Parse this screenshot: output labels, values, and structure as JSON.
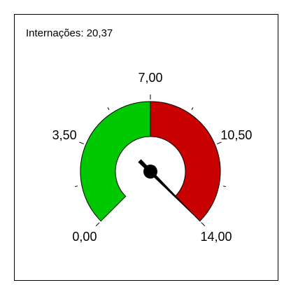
{
  "chart_data": {
    "type": "gauge",
    "title": "Internações: 20,37",
    "ylim": [
      0,
      14
    ],
    "yticks": [
      {
        "value": 0,
        "label": "0,00"
      },
      {
        "value": 3.5,
        "label": "3,50"
      },
      {
        "value": 7,
        "label": "7,00"
      },
      {
        "value": 10.5,
        "label": "10,50"
      },
      {
        "value": 14,
        "label": "14,00"
      }
    ],
    "minor_ticks": [
      1.75,
      5.25,
      8.75,
      12.25
    ],
    "bands": [
      {
        "from": 0,
        "to": 7,
        "color": "#00c800"
      },
      {
        "from": 7,
        "to": 14,
        "color": "#c80000"
      }
    ],
    "needle": 14,
    "needle_color": "#000000"
  }
}
